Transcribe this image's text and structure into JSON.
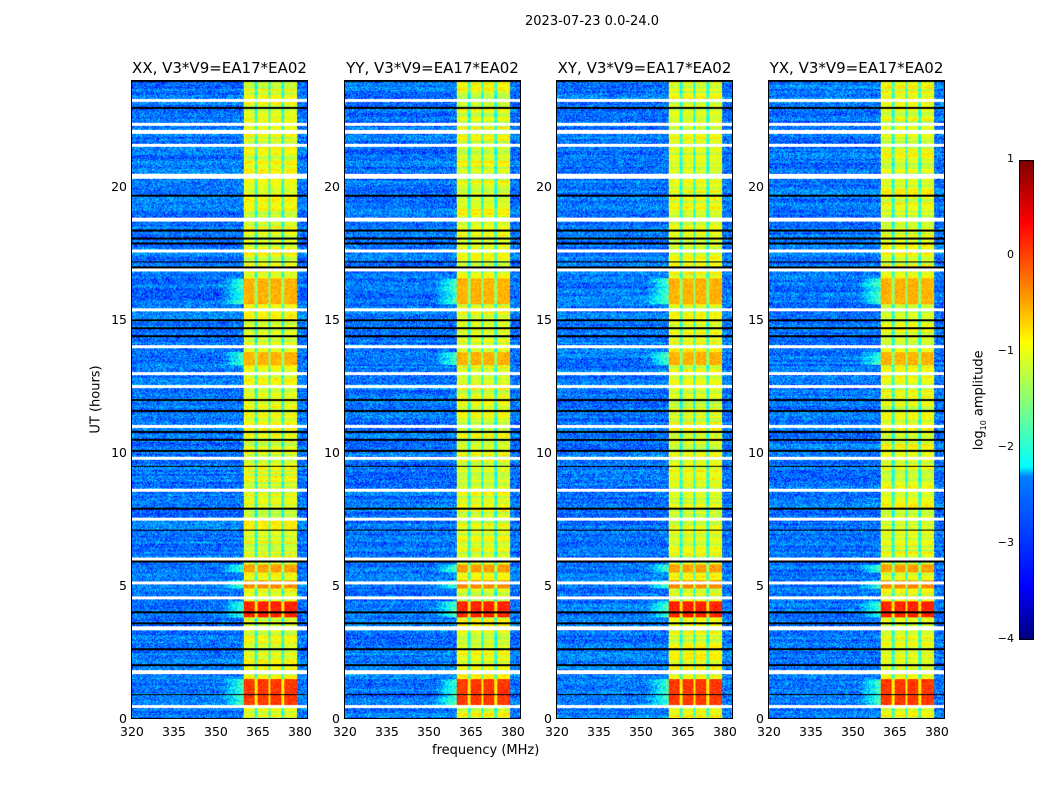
{
  "chart_data": {
    "type": "heatmap",
    "title": "2023-07-23 0.0-24.0",
    "xlabel": "frequency (MHz)",
    "ylabel": "UT (hours)",
    "xlim": [
      320,
      383.2
    ],
    "ylim": [
      0,
      24
    ],
    "xticks": [
      "320",
      "335",
      "350",
      "365",
      "380"
    ],
    "xtick_values": [
      320,
      335,
      350,
      365,
      380
    ],
    "yticks": [
      "0",
      "5",
      "10",
      "15",
      "20"
    ],
    "ytick_values": [
      0,
      5,
      10,
      15,
      20
    ],
    "panels": [
      {
        "title": "XX, V3*V9=EA17*EA02"
      },
      {
        "title": "YY, V3*V9=EA17*EA02"
      },
      {
        "title": "XY, V3*V9=EA17*EA02"
      },
      {
        "title": "YX, V3*V9=EA17*EA02"
      }
    ],
    "background_log_amplitude": -2.8,
    "band_mhz": [
      360,
      379.3
    ],
    "band_log_amplitude": -1.0,
    "band_gaps_mhz": [
      364.6,
      369.4,
      374.3
    ],
    "high_intervals_hours": [
      [
        0.4,
        1.5,
        0.1
      ],
      [
        3.8,
        4.4,
        0.2
      ],
      [
        4.9,
        5.2,
        -0.3
      ],
      [
        5.5,
        5.8,
        -0.4
      ],
      [
        13.3,
        13.8,
        -0.5
      ],
      [
        15.6,
        16.6,
        -0.5
      ]
    ],
    "flagged_white_hours": [
      0.45,
      1.75,
      3.4,
      4.55,
      5.1,
      6.0,
      7.5,
      8.6,
      9.8,
      11.0,
      12.5,
      13.0,
      14.0,
      15.4,
      16.9,
      17.6,
      18.8,
      20.4,
      20.45,
      21.6,
      22.1,
      22.4,
      23.3
    ],
    "dropout_black_hours": [
      0.9,
      2.0,
      2.6,
      3.6,
      4.0,
      5.9,
      7.1,
      7.9,
      9.5,
      10.1,
      10.5,
      10.8,
      11.6,
      12.0,
      14.4,
      14.7,
      15.0,
      17.0,
      17.2,
      17.9,
      18.1,
      18.4,
      19.7,
      23.0
    ],
    "colorbar": {
      "label": "log10 amplitude",
      "label_main": "log",
      "label_sub": "10",
      "label_rest": " amplitude",
      "range": [
        -4,
        1
      ],
      "ticks": [
        "1",
        "0",
        "−1",
        "−2",
        "−3",
        "−4"
      ],
      "tick_values": [
        1,
        0,
        -1,
        -2,
        -3,
        -4
      ]
    }
  }
}
